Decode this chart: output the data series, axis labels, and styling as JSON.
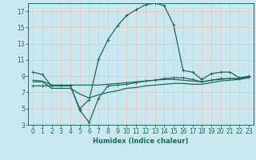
{
  "xlabel": "Humidex (Indice chaleur)",
  "bg_color": "#cce8ef",
  "grid_color": "#e8c8c8",
  "line_color": "#1a6b5e",
  "xlim": [
    -0.5,
    23.5
  ],
  "ylim": [
    3,
    18
  ],
  "xticks": [
    0,
    1,
    2,
    3,
    4,
    5,
    6,
    7,
    8,
    9,
    10,
    11,
    12,
    13,
    14,
    15,
    16,
    17,
    18,
    19,
    20,
    21,
    22,
    23
  ],
  "yticks": [
    3,
    5,
    7,
    9,
    11,
    13,
    15,
    17
  ],
  "line1_x": [
    0,
    1,
    2,
    3,
    4,
    5,
    6,
    7,
    8,
    9,
    10,
    11,
    12,
    13,
    14,
    15,
    16,
    17,
    18,
    19,
    20,
    21,
    22,
    23
  ],
  "line1_y": [
    9.5,
    9.2,
    7.8,
    7.8,
    7.8,
    5.0,
    6.1,
    11.1,
    13.5,
    15.2,
    16.5,
    17.2,
    17.8,
    18.0,
    17.7,
    15.3,
    9.7,
    9.5,
    8.6,
    9.3,
    9.5,
    9.5,
    8.8,
    9.0
  ],
  "line2_x": [
    0,
    1,
    2,
    3,
    4,
    5,
    6,
    7,
    8,
    9,
    10,
    11,
    12,
    13,
    14,
    15,
    16,
    17,
    18,
    19,
    20,
    21,
    22,
    23
  ],
  "line2_y": [
    7.8,
    7.8,
    7.8,
    7.8,
    7.8,
    4.8,
    3.3,
    6.3,
    7.8,
    7.9,
    8.0,
    8.2,
    8.4,
    8.5,
    8.7,
    8.8,
    8.8,
    8.6,
    8.3,
    8.5,
    8.7,
    8.7,
    8.7,
    8.9
  ],
  "line3_x": [
    0,
    1,
    2,
    3,
    4,
    5,
    6,
    7,
    8,
    9,
    10,
    11,
    12,
    13,
    14,
    15,
    16,
    17,
    18,
    19,
    20,
    21,
    22,
    23
  ],
  "line3_y": [
    8.5,
    8.4,
    7.9,
    7.9,
    7.9,
    7.9,
    7.9,
    7.9,
    8.0,
    8.1,
    8.2,
    8.3,
    8.4,
    8.5,
    8.6,
    8.6,
    8.5,
    8.4,
    8.3,
    8.5,
    8.6,
    8.7,
    8.7,
    8.9
  ],
  "line4_x": [
    0,
    1,
    2,
    3,
    4,
    5,
    6,
    7,
    8,
    9,
    10,
    11,
    12,
    13,
    14,
    15,
    16,
    17,
    18,
    19,
    20,
    21,
    22,
    23
  ],
  "line4_y": [
    8.3,
    8.3,
    7.5,
    7.5,
    7.5,
    6.8,
    6.3,
    6.7,
    7.0,
    7.2,
    7.5,
    7.6,
    7.8,
    7.9,
    8.0,
    8.1,
    8.1,
    8.0,
    8.0,
    8.2,
    8.4,
    8.5,
    8.6,
    8.8
  ]
}
